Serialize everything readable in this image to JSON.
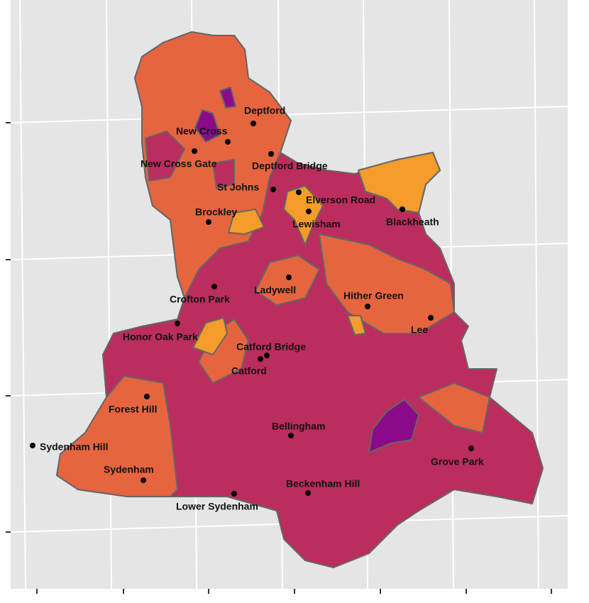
{
  "places": [
    {
      "label": "Deptford"
    },
    {
      "label": "New Cross"
    },
    {
      "label": "New Cross Gate"
    },
    {
      "label": "Deptford Bridge"
    },
    {
      "label": "St Johns"
    },
    {
      "label": "Elverson Road"
    },
    {
      "label": "Lewisham"
    },
    {
      "label": "Blackheath"
    },
    {
      "label": "Brockley"
    },
    {
      "label": "Ladywell"
    },
    {
      "label": "Crofton Park"
    },
    {
      "label": "Hither Green"
    },
    {
      "label": "Lee"
    },
    {
      "label": "Honor Oak Park"
    },
    {
      "label": "Catford Bridge"
    },
    {
      "label": "Catford"
    },
    {
      "label": "Forest Hill"
    },
    {
      "label": "Sydenham Hill"
    },
    {
      "label": "Bellingham"
    },
    {
      "label": "Grove Park"
    },
    {
      "label": "Sydenham"
    },
    {
      "label": "Beckenham Hill"
    },
    {
      "label": "Lower Sydenham"
    }
  ]
}
